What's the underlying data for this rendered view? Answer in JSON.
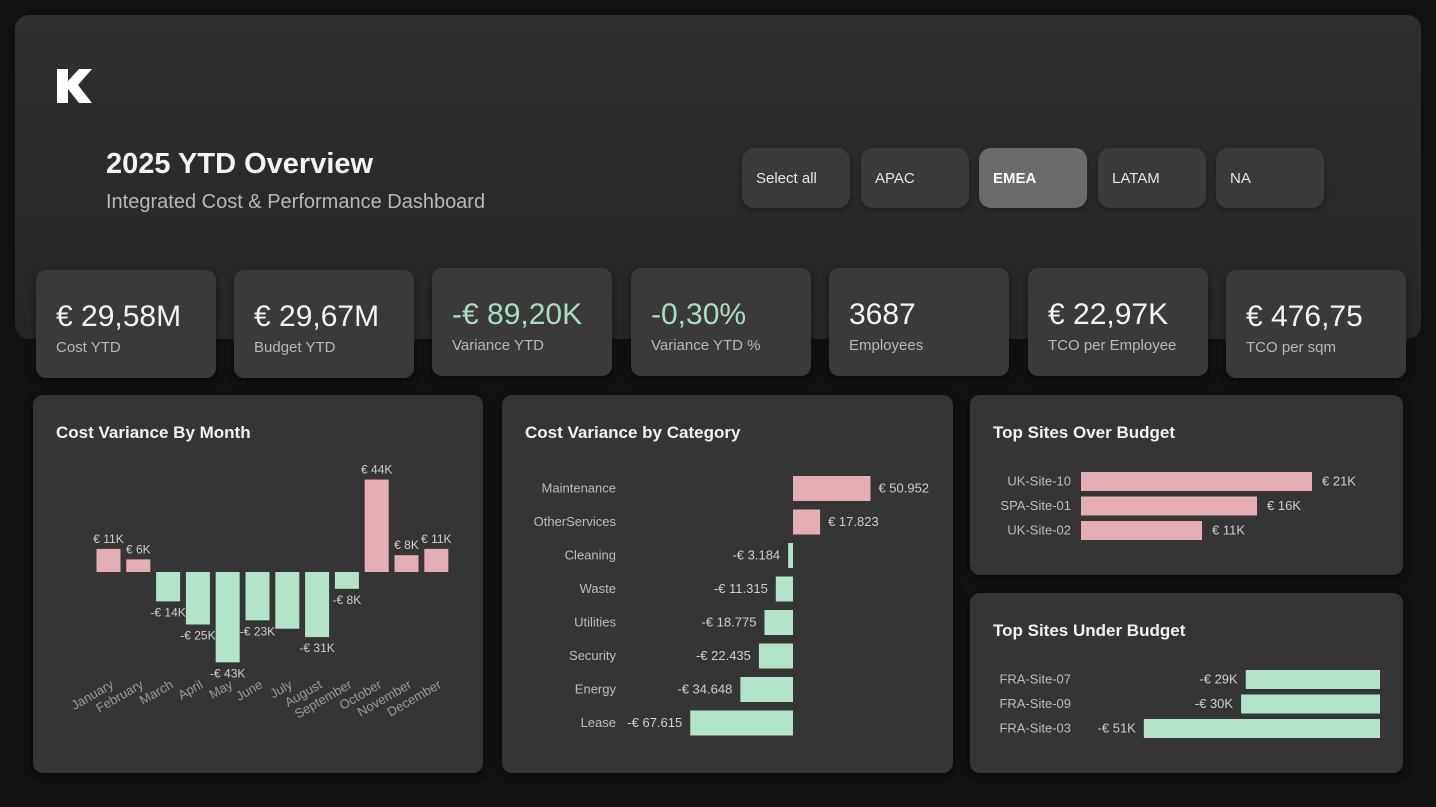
{
  "header": {
    "title": "2025 YTD Overview",
    "subtitle": "Integrated Cost & Performance Dashboard",
    "logo_letter": "K"
  },
  "slicers": [
    {
      "label": "Select all",
      "selected": false
    },
    {
      "label": "APAC",
      "selected": false
    },
    {
      "label": "EMEA",
      "selected": true
    },
    {
      "label": "LATAM",
      "selected": false
    },
    {
      "label": "NA",
      "selected": false
    }
  ],
  "kpis": [
    {
      "value": "€ 29,58M",
      "label": "Cost YTD"
    },
    {
      "value": "€ 29,67M",
      "label": "Budget YTD"
    },
    {
      "value": "-€ 89,20K",
      "label": "Variance YTD"
    },
    {
      "value": "-0,30%",
      "label": "Variance YTD %"
    },
    {
      "value": "3687",
      "label": "Employees"
    },
    {
      "value": "€ 22,97K",
      "label": "TCO per Employee"
    },
    {
      "value": "€ 476,75",
      "label": "TCO per sqm"
    }
  ],
  "colors": {
    "positive": "#e5aeb5",
    "negative": "#b2e4c9",
    "positive_text": "#a9dfbf"
  },
  "chart_data": [
    {
      "type": "bar",
      "title": "Cost Variance By Month",
      "categories": [
        "January",
        "February",
        "March",
        "April",
        "May",
        "June",
        "July",
        "August",
        "September",
        "October",
        "November",
        "December"
      ],
      "values": [
        11,
        6,
        -14,
        -25,
        -43,
        -23,
        -27,
        -31,
        -8,
        44,
        8,
        11
      ],
      "data_labels": [
        "€ 11K",
        "€ 6K",
        "-€ 14K",
        "-€ 25K",
        "-€ 43K",
        "-€ 23K",
        "",
        "-€ 31K",
        "-€ 8K",
        "€ 44K",
        "€ 8K",
        "€ 11K"
      ],
      "unit": "K€",
      "ylim": [
        -43,
        44
      ]
    },
    {
      "type": "bar",
      "orientation": "horizontal",
      "title": "Cost Variance by Category",
      "categories": [
        "Maintenance",
        "OtherServices",
        "Cleaning",
        "Waste",
        "Utilities",
        "Security",
        "Energy",
        "Lease"
      ],
      "values": [
        50952,
        17823,
        -3184,
        -11315,
        -18775,
        -22435,
        -34648,
        -67615
      ],
      "data_labels": [
        "€ 50.952",
        "€ 17.823",
        "-€ 3.184",
        "-€ 11.315",
        "-€ 18.775",
        "-€ 22.435",
        "-€ 34.648",
        "-€ 67.615"
      ]
    },
    {
      "type": "bar",
      "orientation": "horizontal",
      "title": "Top Sites Over Budget",
      "categories": [
        "UK-Site-10",
        "SPA-Site-01",
        "UK-Site-02"
      ],
      "values": [
        21,
        16,
        11
      ],
      "data_labels": [
        "€ 21K",
        "€ 16K",
        "€ 11K"
      ]
    },
    {
      "type": "bar",
      "orientation": "horizontal",
      "title": "Top Sites Under Budget",
      "categories": [
        "FRA-Site-07",
        "FRA-Site-09",
        "FRA-Site-03"
      ],
      "values": [
        -29,
        -30,
        -51
      ],
      "data_labels": [
        "-€ 29K",
        "-€ 30K",
        "-€ 51K"
      ]
    }
  ]
}
